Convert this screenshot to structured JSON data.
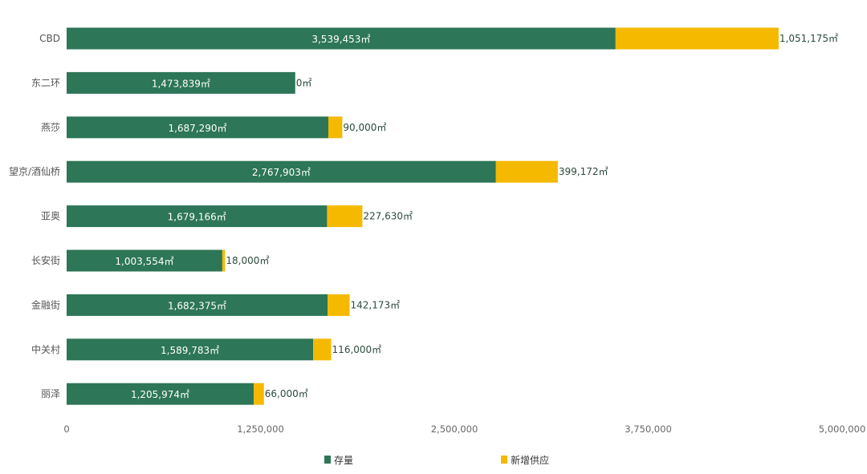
{
  "chart_data": {
    "type": "bar",
    "orientation": "horizontal",
    "stacked": true,
    "categories": [
      "CBD",
      "东二环",
      "燕莎",
      "望京/酒仙桥",
      "亚奥",
      "长安街",
      "金融街",
      "中关村",
      "丽泽"
    ],
    "series": [
      {
        "name": "存量",
        "color": "#2d7657",
        "values": [
          3539453,
          1473839,
          1687290,
          2767903,
          1679166,
          1003554,
          1682375,
          1589783,
          1205974
        ],
        "labels": [
          "3,539,453㎡",
          "1,473,839㎡",
          "1,687,290㎡",
          "2,767,903㎡",
          "1,679,166㎡",
          "1,003,554㎡",
          "1,682,375㎡",
          "1,589,783㎡",
          "1,205,974㎡"
        ]
      },
      {
        "name": "新增供应",
        "color": "#f5b900",
        "values": [
          1051175,
          0,
          90000,
          399172,
          227630,
          18000,
          142173,
          116000,
          66000
        ],
        "labels": [
          "1,051,175㎡",
          "0㎡",
          "90,000㎡",
          "399,172㎡",
          "227,630㎡",
          "18,000㎡",
          "142,173㎡",
          "116,000㎡",
          "66,000㎡"
        ]
      }
    ],
    "xlim": [
      0,
      5000000
    ],
    "xticks": [
      "0",
      "1,250,000",
      "2,500,000",
      "3,750,000",
      "5,000,000"
    ],
    "xtick_values": [
      0,
      1250000,
      2500000,
      3750000,
      5000000
    ],
    "grid": false,
    "legend": "bottom"
  }
}
